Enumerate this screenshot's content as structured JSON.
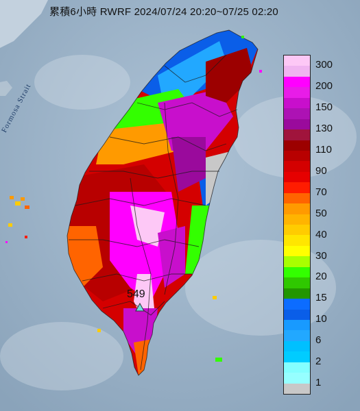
{
  "title": "累積6小時 RWRF 2024/07/24 20:20~07/25 02:20",
  "strait_label": "Formosa Strait",
  "peak_value": "549",
  "legend": [
    {
      "label": "300",
      "color": "#fdc8f6"
    },
    {
      "label": "",
      "color": "#f0b4f0"
    },
    {
      "label": "200",
      "color": "#ff00ff"
    },
    {
      "label": "",
      "color": "#e81ce8"
    },
    {
      "label": "150",
      "color": "#c80fcc"
    },
    {
      "label": "",
      "color": "#ad12b4"
    },
    {
      "label": "130",
      "color": "#9a0a9c"
    },
    {
      "label": "",
      "color": "#a0143c"
    },
    {
      "label": "110",
      "color": "#9c0000"
    },
    {
      "label": "",
      "color": "#b80000"
    },
    {
      "label": "90",
      "color": "#d40000"
    },
    {
      "label": "",
      "color": "#e60000"
    },
    {
      "label": "70",
      "color": "#ff1c00"
    },
    {
      "label": "",
      "color": "#ff6400"
    },
    {
      "label": "50",
      "color": "#ff9a00"
    },
    {
      "label": "",
      "color": "#ffb400"
    },
    {
      "label": "40",
      "color": "#ffcc00"
    },
    {
      "label": "",
      "color": "#ffe600"
    },
    {
      "label": "30",
      "color": "#ffff00"
    },
    {
      "label": "",
      "color": "#a8ff00"
    },
    {
      "label": "20",
      "color": "#33ff00"
    },
    {
      "label": "",
      "color": "#2fc800"
    },
    {
      "label": "15",
      "color": "#229600"
    },
    {
      "label": "",
      "color": "#0c6cff"
    },
    {
      "label": "10",
      "color": "#0a5ee8"
    },
    {
      "label": "",
      "color": "#189aff"
    },
    {
      "label": "6",
      "color": "#22a8ff"
    },
    {
      "label": "",
      "color": "#00c0ff"
    },
    {
      "label": "2",
      "color": "#00ccff"
    },
    {
      "label": "",
      "color": "#84ffff"
    },
    {
      "label": "1",
      "color": "#96ffff"
    },
    {
      "label": "",
      "color": "#c8c8c8"
    }
  ]
}
